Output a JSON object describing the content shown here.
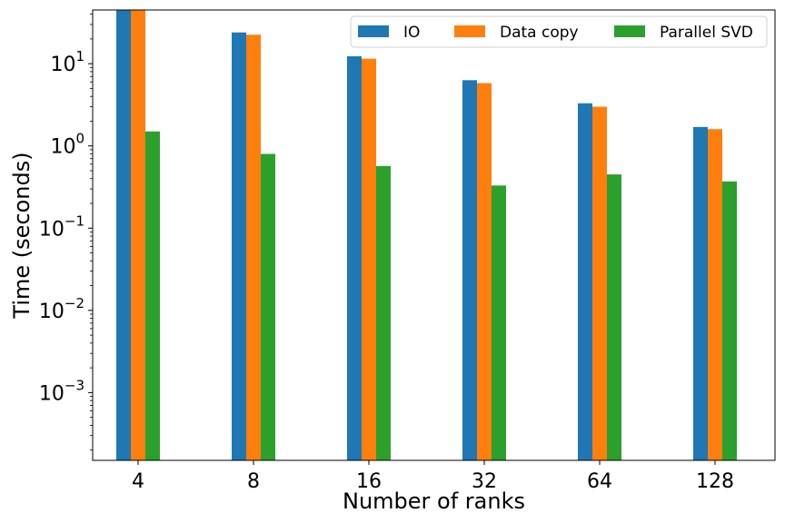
{
  "chart_data": {
    "type": "bar",
    "title": "",
    "xlabel": "Number of ranks",
    "ylabel": "Time (seconds)",
    "yscale": "log",
    "ylim": [
      0.00015,
      45
    ],
    "y_ticks": [
      0.001,
      0.01,
      0.1,
      1,
      10
    ],
    "y_tick_labels": [
      {
        "base": "10",
        "exp": "−3"
      },
      {
        "base": "10",
        "exp": "−2"
      },
      {
        "base": "10",
        "exp": "−1"
      },
      {
        "base": "10",
        "exp": "0"
      },
      {
        "base": "10",
        "exp": "1"
      }
    ],
    "categories": [
      "4",
      "8",
      "16",
      "32",
      "64",
      "128"
    ],
    "series": [
      {
        "name": "IO",
        "color": "#1f77b4",
        "values": [
          48,
          24,
          12.3,
          6.3,
          3.3,
          1.7
        ]
      },
      {
        "name": "Data copy",
        "color": "#ff7f0e",
        "values": [
          46,
          22.5,
          11.5,
          5.8,
          3.0,
          1.6
        ]
      },
      {
        "name": "Parallel SVD",
        "color": "#2ca02c",
        "values": [
          1.5,
          0.8,
          0.57,
          0.33,
          0.45,
          0.37
        ]
      }
    ],
    "legend_position": "top-right",
    "legend_columns": 3,
    "grid": false
  }
}
